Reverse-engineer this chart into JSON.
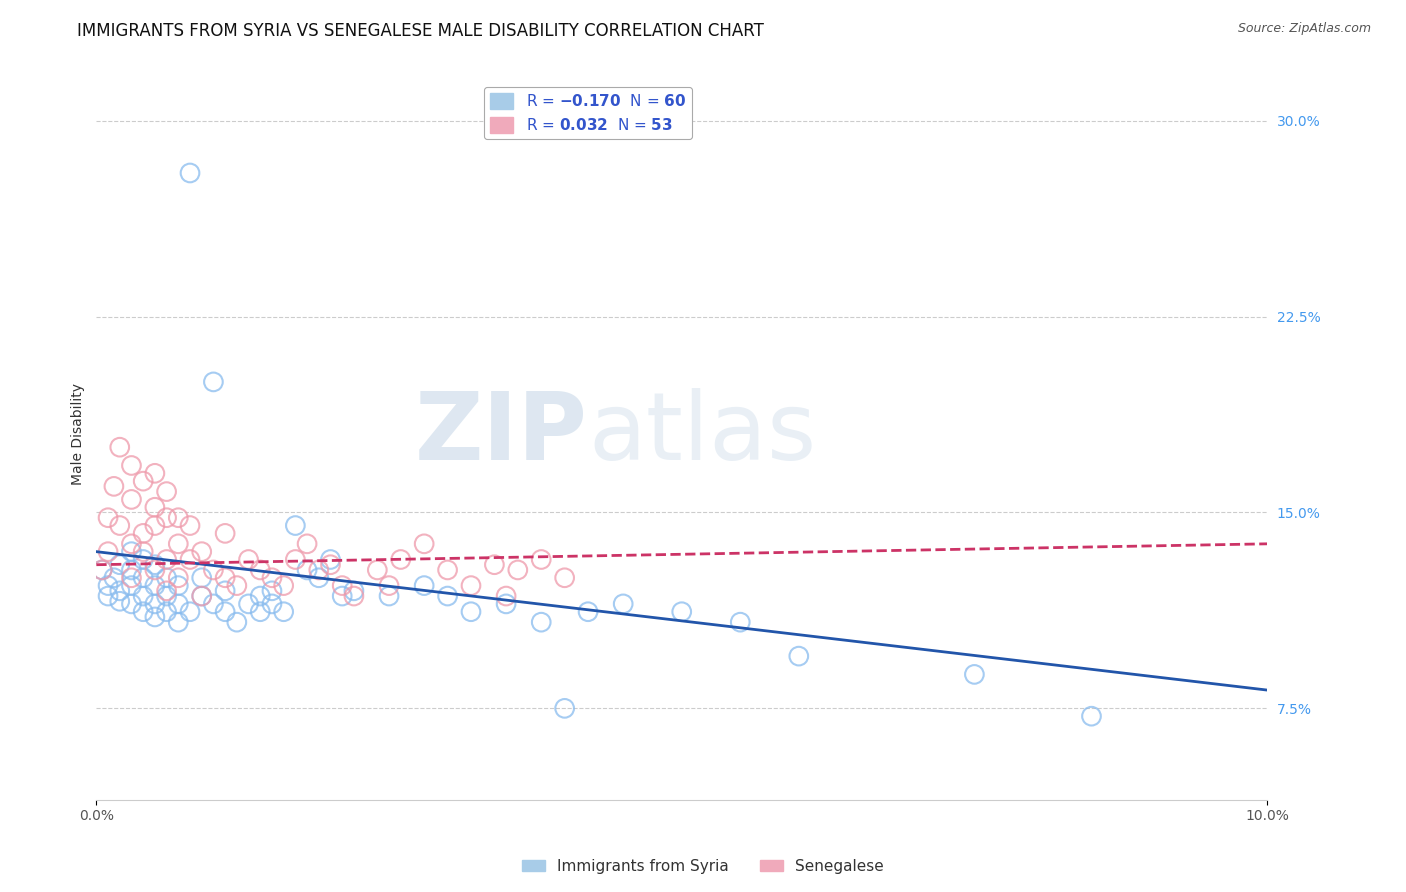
{
  "title": "IMMIGRANTS FROM SYRIA VS SENEGALESE MALE DISABILITY CORRELATION CHART",
  "source": "Source: ZipAtlas.com",
  "xlabel": "",
  "ylabel": "Male Disability",
  "xlim": [
    0.0,
    0.1
  ],
  "ylim": [
    0.04,
    0.32
  ],
  "right_ytick_vals": [
    0.075,
    0.15,
    0.225,
    0.3
  ],
  "right_ytick_labels": [
    "7.5%",
    "15.0%",
    "22.5%",
    "30.0%"
  ],
  "grid_ytick_vals": [
    0.075,
    0.15,
    0.225,
    0.3
  ],
  "xticks": [
    0.0,
    0.1
  ],
  "xtick_labels": [
    "0.0%",
    "10.0%"
  ],
  "grid_color": "#cccccc",
  "background_color": "#ffffff",
  "tick_color": "#4499ee",
  "series": [
    {
      "name": "Immigrants from Syria",
      "R": -0.17,
      "N": 60,
      "color": "#88bbee",
      "edge_color": "#88bbee",
      "line_color": "#2255aa",
      "scatter_x": [
        0.0005,
        0.001,
        0.001,
        0.0015,
        0.002,
        0.002,
        0.002,
        0.003,
        0.003,
        0.003,
        0.003,
        0.004,
        0.004,
        0.004,
        0.004,
        0.005,
        0.005,
        0.005,
        0.005,
        0.006,
        0.006,
        0.006,
        0.007,
        0.007,
        0.007,
        0.008,
        0.008,
        0.009,
        0.009,
        0.01,
        0.01,
        0.011,
        0.011,
        0.012,
        0.013,
        0.014,
        0.014,
        0.015,
        0.015,
        0.016,
        0.017,
        0.018,
        0.019,
        0.02,
        0.021,
        0.022,
        0.025,
        0.028,
        0.03,
        0.032,
        0.035,
        0.038,
        0.04,
        0.042,
        0.045,
        0.05,
        0.055,
        0.06,
        0.075,
        0.085
      ],
      "scatter_y": [
        0.128,
        0.122,
        0.118,
        0.125,
        0.116,
        0.12,
        0.13,
        0.115,
        0.122,
        0.128,
        0.135,
        0.112,
        0.118,
        0.125,
        0.132,
        0.11,
        0.115,
        0.122,
        0.13,
        0.112,
        0.118,
        0.125,
        0.108,
        0.115,
        0.122,
        0.28,
        0.112,
        0.118,
        0.125,
        0.115,
        0.2,
        0.112,
        0.12,
        0.108,
        0.115,
        0.118,
        0.112,
        0.12,
        0.115,
        0.112,
        0.145,
        0.128,
        0.125,
        0.132,
        0.118,
        0.12,
        0.118,
        0.122,
        0.118,
        0.112,
        0.115,
        0.108,
        0.075,
        0.112,
        0.115,
        0.112,
        0.108,
        0.095,
        0.088,
        0.072
      ],
      "trend_x": [
        0.0,
        0.1
      ],
      "trend_y": [
        0.135,
        0.082
      ],
      "trend_linestyle": "solid"
    },
    {
      "name": "Senegalese",
      "R": 0.032,
      "N": 53,
      "color": "#ee99aa",
      "edge_color": "#ee99aa",
      "line_color": "#cc3366",
      "scatter_x": [
        0.0005,
        0.001,
        0.001,
        0.0015,
        0.002,
        0.002,
        0.003,
        0.003,
        0.003,
        0.003,
        0.004,
        0.004,
        0.004,
        0.005,
        0.005,
        0.005,
        0.005,
        0.006,
        0.006,
        0.006,
        0.006,
        0.007,
        0.007,
        0.007,
        0.008,
        0.008,
        0.009,
        0.009,
        0.01,
        0.011,
        0.011,
        0.012,
        0.013,
        0.014,
        0.015,
        0.016,
        0.017,
        0.018,
        0.019,
        0.02,
        0.021,
        0.022,
        0.024,
        0.025,
        0.026,
        0.028,
        0.03,
        0.032,
        0.034,
        0.035,
        0.036,
        0.038,
        0.04
      ],
      "scatter_y": [
        0.128,
        0.135,
        0.148,
        0.16,
        0.175,
        0.145,
        0.138,
        0.155,
        0.168,
        0.125,
        0.142,
        0.162,
        0.135,
        0.152,
        0.128,
        0.145,
        0.165,
        0.132,
        0.148,
        0.158,
        0.12,
        0.138,
        0.148,
        0.125,
        0.132,
        0.145,
        0.118,
        0.135,
        0.128,
        0.125,
        0.142,
        0.122,
        0.132,
        0.128,
        0.125,
        0.122,
        0.132,
        0.138,
        0.128,
        0.13,
        0.122,
        0.118,
        0.128,
        0.122,
        0.132,
        0.138,
        0.128,
        0.122,
        0.13,
        0.118,
        0.128,
        0.132,
        0.125
      ],
      "trend_x": [
        0.0,
        0.1
      ],
      "trend_y": [
        0.13,
        0.138
      ],
      "trend_linestyle": "dashed"
    }
  ],
  "watermark_zip": "ZIP",
  "watermark_atlas": "atlas",
  "title_fontsize": 12,
  "axis_label_fontsize": 10,
  "tick_fontsize": 10,
  "legend_fontsize": 11
}
